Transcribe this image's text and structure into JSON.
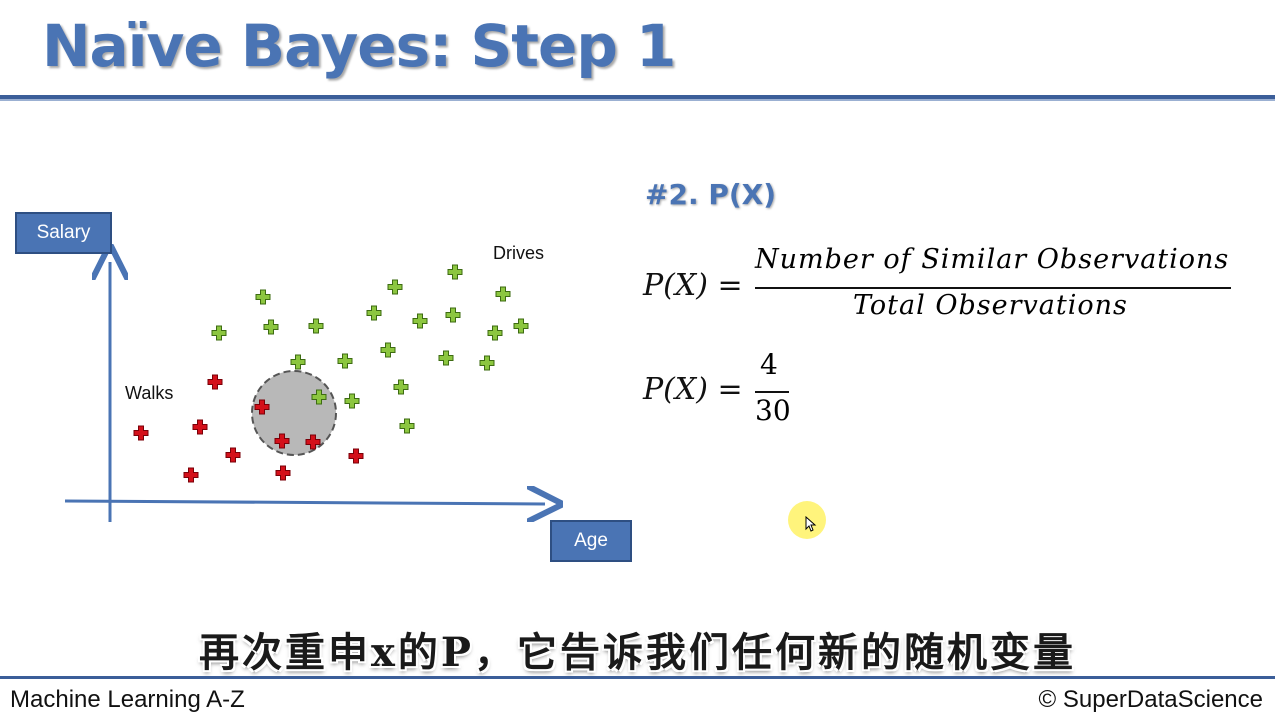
{
  "slide": {
    "title": "Naïve Bayes: Step 1",
    "heading": "#2. P(X)"
  },
  "plot": {
    "y_axis_label": "Salary",
    "x_axis_label": "Age",
    "class_a_label": "Walks",
    "class_b_label": "Drives",
    "colors": {
      "walks": "#d4101a",
      "drives": "#8cc63f",
      "axis": "#4a74b4",
      "circle": "#b8b8b8"
    }
  },
  "formula1": {
    "lhs": "P(X) =",
    "numerator": "Number of Similar Observations",
    "denominator": "Total Observations"
  },
  "formula2": {
    "lhs": "P(X) =",
    "numerator": "4",
    "denominator": "30"
  },
  "subtitle": "再次重申x的P，它告诉我们任何新的随机变量",
  "footer": {
    "left": "Machine Learning A-Z",
    "right": "© SuperDataScience"
  }
}
